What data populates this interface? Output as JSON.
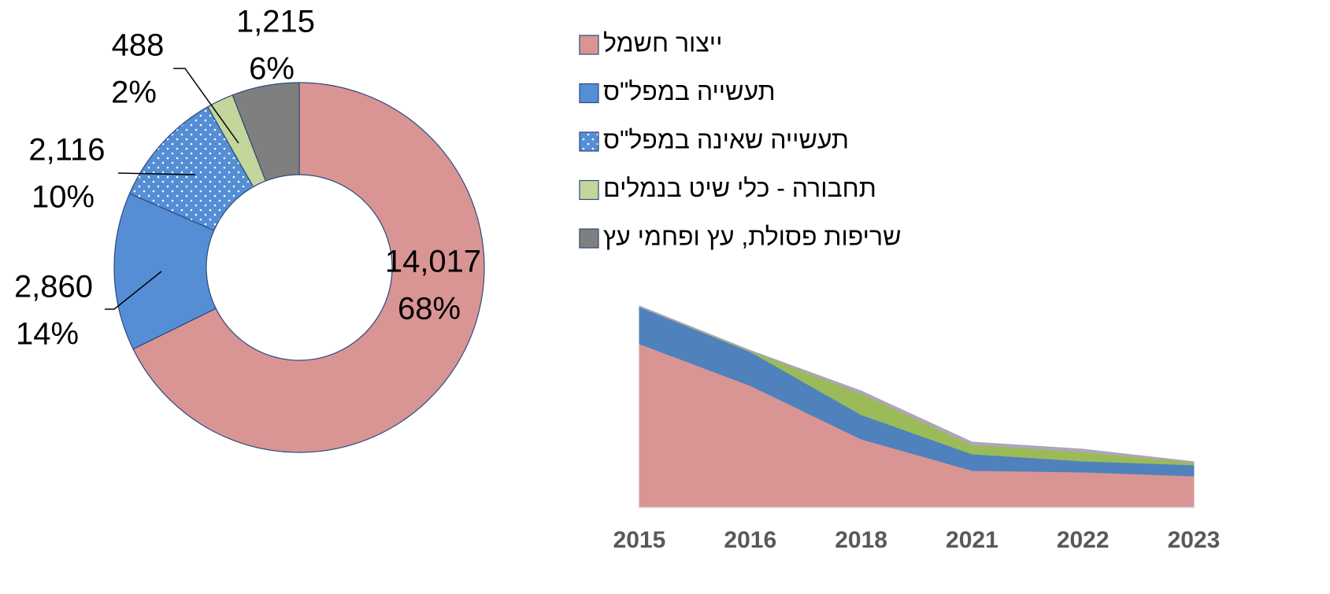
{
  "chart_data": [
    {
      "type": "donut",
      "categories": [
        "ייצור חשמל",
        "תעשייה במפל\"ס",
        "תעשייה שאינה במפל\"ס",
        "תחבורה - כלי שיט בנמלים",
        "שריפות פסולת, עץ ופחמי עץ"
      ],
      "values": [
        14017,
        2860,
        2116,
        488,
        1215
      ],
      "value_labels": [
        "14,017",
        "2,860",
        "2,116",
        "488",
        "1,215"
      ],
      "percents": [
        68,
        14,
        10,
        2,
        6
      ],
      "percent_labels": [
        "68%",
        "14%",
        "10%",
        "2%",
        "6%"
      ],
      "colors": [
        "#d99594",
        "#558ed5",
        "#558ed5",
        "#c3d69b",
        "#7f7f7f"
      ],
      "fill_patterns": [
        null,
        null,
        "dots",
        null,
        null
      ],
      "legend": "top-right"
    },
    {
      "type": "stacked-area",
      "categories": [
        "2015",
        "2016",
        "2018",
        "2021",
        "2022",
        "2023"
      ],
      "ylim": [
        0,
        260
      ],
      "series": [
        {
          "name": "ייצור חשמל",
          "color": "#d99594",
          "values": [
            208,
            155,
            87,
            47,
            45,
            40
          ]
        },
        {
          "name": "תעשייה במפל\"ס",
          "color": "#4f81bd",
          "values": [
            47,
            43,
            31,
            21,
            14,
            14
          ]
        },
        {
          "name": "תעשייה שאינה במפל\"ס",
          "color": "#9bbb59",
          "values": [
            0,
            1,
            27,
            12,
            12,
            3
          ]
        },
        {
          "name": "תחבורה - כלי שיט בנמלים",
          "color": "#b2a2c7",
          "values": [
            1,
            0.5,
            3,
            3,
            3,
            1
          ]
        },
        {
          "name": "שריפות פסולת, עץ ופחמי עץ",
          "color": "#a6a6a6",
          "values": [
            0,
            0,
            0,
            0,
            0,
            0
          ]
        }
      ]
    }
  ]
}
